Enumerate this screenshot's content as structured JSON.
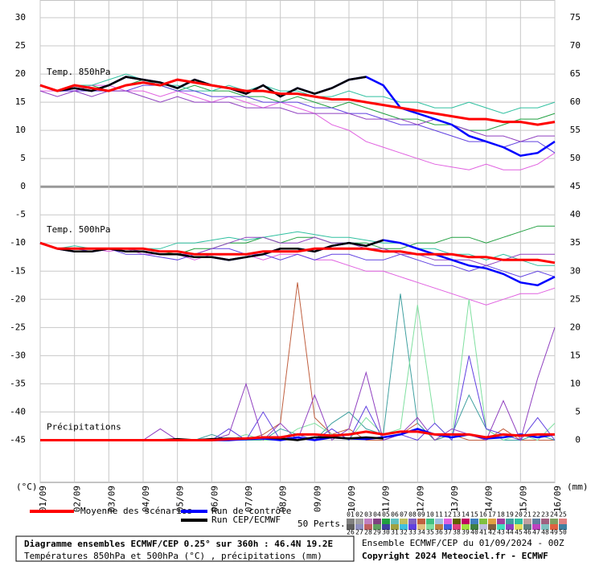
{
  "chart_data": {
    "type": "line",
    "categories": [
      "01/09",
      null,
      "02/09",
      null,
      "03/09",
      null,
      "04/09",
      null,
      "05/09",
      null,
      "06/09",
      null,
      "07/09",
      null,
      "08/09",
      null,
      "09/09",
      null,
      "10/09",
      null,
      "11/09",
      null,
      "12/09",
      null,
      "13/09",
      null,
      "14/09",
      null,
      "15/09",
      null,
      "16/09"
    ],
    "x_unit_left": "(°C)",
    "x_unit_right": "(mm)",
    "ylim": [
      -52.5,
      32
    ],
    "yticks": [
      30,
      25,
      20,
      15,
      10,
      5,
      0,
      -5,
      -10,
      -15,
      -20,
      -25,
      -30,
      -35,
      -40,
      -45
    ],
    "y2lim": [
      -7.5,
      77
    ],
    "y2ticks": [
      75,
      70,
      65,
      60,
      55,
      50,
      45,
      40,
      35,
      30,
      25,
      20,
      15,
      10,
      5,
      0
    ],
    "grid": true,
    "legend": [
      {
        "name": "Moyenne des scénarios",
        "color": "#ff0000"
      },
      {
        "name": "Run de contrôle",
        "color": "#0000ff"
      },
      {
        "name": "Run CEP/ECMWF",
        "color": "#000000"
      }
    ],
    "perturbations": {
      "label": "50 Perts.",
      "members": [
        {
          "name": "01",
          "color": "#808080"
        },
        {
          "name": "02",
          "color": "#a0a0a0"
        },
        {
          "name": "03",
          "color": "#c080c0"
        },
        {
          "name": "04",
          "color": "#804080"
        },
        {
          "name": "05",
          "color": "#20a040"
        },
        {
          "name": "06",
          "color": "#60c0c0"
        },
        {
          "name": "07",
          "color": "#c0c060"
        },
        {
          "name": "08",
          "color": "#8060c0"
        },
        {
          "name": "09",
          "color": "#c06040"
        },
        {
          "name": "10",
          "color": "#40c080"
        },
        {
          "name": "11",
          "color": "#a0c0e0"
        },
        {
          "name": "12",
          "color": "#e060e0"
        },
        {
          "name": "13",
          "color": "#606000"
        },
        {
          "name": "14",
          "color": "#c00060"
        },
        {
          "name": "15",
          "color": "#4080c0"
        },
        {
          "name": "16",
          "color": "#80c040"
        },
        {
          "name": "17",
          "color": "#e0a040"
        },
        {
          "name": "18",
          "color": "#a040a0"
        },
        {
          "name": "19",
          "color": "#40a0a0"
        },
        {
          "name": "20",
          "color": "#30c0a0"
        },
        {
          "name": "21",
          "color": "#c0a0a0"
        },
        {
          "name": "22",
          "color": "#6080a0"
        },
        {
          "name": "23",
          "color": "#a06080"
        },
        {
          "name": "24",
          "color": "#80a060"
        },
        {
          "name": "25",
          "color": "#e08080"
        },
        {
          "name": "26",
          "color": "#606060"
        },
        {
          "name": "27",
          "color": "#9090c0"
        },
        {
          "name": "28",
          "color": "#c06060"
        },
        {
          "name": "29",
          "color": "#60a060"
        },
        {
          "name": "30",
          "color": "#4040a0"
        },
        {
          "name": "31",
          "color": "#a0a040"
        },
        {
          "name": "32",
          "color": "#40c0e0"
        },
        {
          "name": "33",
          "color": "#6040e0"
        },
        {
          "name": "34",
          "color": "#e0c080"
        },
        {
          "name": "35",
          "color": "#80e0a0"
        },
        {
          "name": "36",
          "color": "#c08040"
        },
        {
          "name": "37",
          "color": "#4060e0"
        },
        {
          "name": "38",
          "color": "#e04080"
        },
        {
          "name": "39",
          "color": "#a0e040"
        },
        {
          "name": "40",
          "color": "#408040"
        },
        {
          "name": "41",
          "color": "#c0c0e0"
        },
        {
          "name": "42",
          "color": "#806040"
        },
        {
          "name": "43",
          "color": "#40e0c0"
        },
        {
          "name": "44",
          "color": "#9040c0"
        },
        {
          "name": "45",
          "color": "#e0e060"
        },
        {
          "name": "46",
          "color": "#608080"
        },
        {
          "name": "47",
          "color": "#c040c0"
        },
        {
          "name": "48",
          "color": "#80c0c0"
        },
        {
          "name": "49",
          "color": "#e06040"
        },
        {
          "name": "50",
          "color": "#4080a0"
        }
      ]
    },
    "panels": [
      {
        "label": "Temp. 850hPa",
        "axis": "y",
        "mean": [
          18,
          17,
          18,
          17.5,
          17,
          18,
          18.5,
          18,
          19,
          18.5,
          18,
          17.5,
          17,
          17,
          16.5,
          16.5,
          16,
          15.5,
          15.5,
          15,
          14.5,
          14,
          13.5,
          13,
          12.5,
          12,
          12,
          11.5,
          11.5,
          11,
          11.5
        ],
        "control": [
          18,
          17,
          17.5,
          17,
          18,
          19.5,
          19,
          18.5,
          17.5,
          19,
          18,
          17.5,
          16.5,
          18,
          16,
          17.5,
          16.5,
          17.5,
          19,
          19.5,
          18,
          14,
          13,
          12,
          11,
          9,
          8,
          7,
          5.5,
          6,
          8
        ],
        "cep": [
          18,
          17,
          17.5,
          17,
          18,
          19.5,
          19,
          18.5,
          17.5,
          19,
          18,
          17.5,
          16.5,
          18,
          16,
          17.5,
          16.5,
          17.5,
          19,
          19.5,
          null,
          null,
          null,
          null,
          null,
          null,
          null,
          null,
          null,
          null,
          null
        ],
        "members": [
          {
            "name": "05",
            "values": [
              18,
              17,
              18,
              18,
              17,
              18,
              19,
              18,
              17,
              18,
              17,
              17,
              16,
              16,
              15,
              16,
              15,
              14,
              15,
              14,
              13,
              12,
              12,
              11,
              11,
              10,
              10,
              11,
              12,
              12,
              13
            ]
          },
          {
            "name": "12",
            "values": [
              17,
              17,
              17,
              18,
              18,
              17,
              17,
              16,
              17,
              16,
              15,
              16,
              15,
              14,
              15,
              14,
              13,
              11,
              10,
              8,
              7,
              6,
              5,
              4,
              3.5,
              3,
              4,
              3,
              3,
              4,
              6
            ]
          },
          {
            "name": "20",
            "values": [
              18,
              17,
              18,
              18,
              19,
              20,
              19,
              18,
              18,
              17,
              17,
              18,
              17,
              18,
              17,
              17,
              16,
              16,
              17,
              16,
              16,
              15,
              15,
              14,
              14,
              15,
              14,
              13,
              14,
              14,
              15
            ]
          },
          {
            "name": "33",
            "values": [
              18,
              17,
              17,
              17,
              17,
              17,
              18,
              18,
              17,
              17,
              16,
              16,
              16,
              15,
              15,
              15,
              14,
              14,
              13,
              13,
              12,
              11,
              11,
              10,
              9,
              8,
              8,
              7,
              8,
              8,
              6
            ]
          },
          {
            "name": "44",
            "values": [
              17,
              16,
              17,
              16,
              17,
              17,
              16,
              15,
              16,
              15,
              15,
              15,
              14,
              14,
              14,
              13,
              13,
              13,
              13,
              12,
              12,
              12,
              11,
              12,
              11,
              10,
              9,
              9,
              8,
              9,
              9
            ]
          }
        ]
      },
      {
        "label": "Temp. 500hPa",
        "axis": "y",
        "mean": [
          -10,
          -11,
          -11,
          -11,
          -11,
          -11,
          -11,
          -11.5,
          -11.5,
          -12,
          -12,
          -12,
          -12,
          -11.5,
          -11.5,
          -11.5,
          -11,
          -11,
          -11,
          -11,
          -11.5,
          -11.5,
          -12,
          -12,
          -12,
          -12.5,
          -12.5,
          -13,
          -13,
          -13,
          -13.5
        ],
        "control": [
          -10,
          -11,
          -11.5,
          -11.5,
          -11,
          -11.5,
          -11.5,
          -12,
          -12,
          -12.5,
          -12.5,
          -13,
          -12.5,
          -12,
          -11,
          -11,
          -11.5,
          -10.5,
          -10,
          -10.5,
          -9.5,
          -10,
          -11,
          -12,
          -13,
          -14,
          -14.5,
          -15.5,
          -17,
          -17.5,
          -16
        ],
        "cep": [
          -10,
          -11,
          -11.5,
          -11.5,
          -11,
          -11.5,
          -11.5,
          -12,
          -12,
          -12.5,
          -12.5,
          -13,
          -12.5,
          -12,
          -11,
          -11,
          -11.5,
          -10.5,
          -10,
          -10.5,
          -9.5,
          null,
          null,
          null,
          null,
          null,
          null,
          null,
          null,
          null,
          null
        ],
        "members": [
          {
            "name": "05",
            "values": [
              -10,
              -11,
              -11,
              -11,
              -11,
              -11,
              -11,
              -11.5,
              -12,
              -11,
              -11,
              -10,
              -10,
              -9,
              -10,
              -9,
              -9,
              -10,
              -10,
              -10,
              -11,
              -11,
              -10,
              -10,
              -9,
              -9,
              -10,
              -9,
              -8,
              -7,
              -7
            ]
          },
          {
            "name": "12",
            "values": [
              -10,
              -11,
              -11,
              -11,
              -11.5,
              -11,
              -12,
              -12,
              -12,
              -13,
              -12,
              -12,
              -12,
              -13,
              -12,
              -12,
              -13,
              -13,
              -14,
              -15,
              -15,
              -16,
              -17,
              -18,
              -19,
              -20,
              -21,
              -20,
              -19,
              -19,
              -18
            ]
          },
          {
            "name": "20",
            "values": [
              -10,
              -11,
              -10.5,
              -11,
              -11,
              -11,
              -11,
              -11,
              -10,
              -10,
              -9.5,
              -9,
              -9.5,
              -9,
              -8.5,
              -8,
              -8.5,
              -9,
              -9,
              -9.5,
              -10,
              -10,
              -11,
              -11,
              -12,
              -12,
              -13,
              -12,
              -13,
              -14,
              -14
            ]
          },
          {
            "name": "33",
            "values": [
              -10,
              -11,
              -11,
              -11.5,
              -11,
              -12,
              -12,
              -12.5,
              -13,
              -12,
              -11,
              -11,
              -12,
              -12,
              -13,
              -12,
              -13,
              -12,
              -12,
              -13,
              -13,
              -12,
              -13,
              -14,
              -14,
              -15,
              -14,
              -15,
              -16,
              -15,
              -16
            ]
          },
          {
            "name": "44",
            "values": [
              -10,
              -11,
              -11,
              -11,
              -11,
              -11,
              -11.5,
              -12,
              -12,
              -12,
              -11,
              -10,
              -9,
              -9,
              -10,
              -10,
              -9,
              -10,
              -10,
              -11,
              -11,
              -12,
              -12,
              -13,
              -13,
              -13,
              -14,
              -13,
              -12,
              -12,
              -12
            ]
          }
        ]
      },
      {
        "label": "Précipitations",
        "axis": "y2",
        "mean": [
          0,
          0,
          0,
          0,
          0,
          0,
          0,
          0,
          0,
          0,
          0,
          0.2,
          0.3,
          0.5,
          0.5,
          1,
          1,
          0.8,
          1,
          1.5,
          1,
          1.5,
          1.5,
          1,
          1,
          1,
          0.5,
          1,
          0.8,
          1,
          1
        ],
        "control": [
          0,
          0,
          0,
          0,
          0,
          0,
          0,
          0,
          0,
          0,
          0,
          0,
          0.2,
          0.3,
          0,
          0.5,
          0,
          0.5,
          0.3,
          0.2,
          0.5,
          1,
          2,
          1,
          0.5,
          1,
          0.3,
          0.5,
          1,
          0.5,
          1
        ],
        "cep": [
          0,
          0,
          0,
          0,
          0,
          0,
          0,
          0,
          0.2,
          0,
          0.2,
          0.3,
          0.3,
          0.5,
          0.3,
          0,
          0.5,
          0.5,
          0.3,
          0.5,
          0.3,
          null,
          null,
          null,
          null,
          null,
          null,
          null,
          null,
          null,
          null
        ],
        "members": [
          {
            "name": "09",
            "values": [
              0,
              0,
              0,
              0,
              0,
              0,
              0,
              0,
              0,
              0,
              0,
              0,
              0,
              1,
              3,
              28,
              4,
              1,
              2,
              0,
              0,
              1,
              3,
              0,
              1,
              0,
              0,
              2,
              0,
              0,
              0
            ]
          },
          {
            "name": "19",
            "values": [
              0,
              0,
              0,
              0,
              0,
              0,
              0,
              0,
              0,
              0,
              1,
              0,
              0,
              0,
              2,
              1,
              0,
              3,
              5,
              2,
              1,
              26,
              3,
              0,
              1,
              8,
              2,
              0,
              0,
              1,
              0
            ]
          },
          {
            "name": "35",
            "values": [
              0,
              0,
              0,
              0,
              0,
              0,
              0,
              0,
              0,
              0,
              0,
              0,
              1,
              0,
              0,
              2,
              3,
              1,
              0,
              4,
              1,
              2,
              24,
              3,
              0,
              25,
              2,
              0,
              1,
              0,
              3
            ]
          },
          {
            "name": "33",
            "values": [
              0,
              0,
              0,
              0,
              0,
              0,
              0,
              0,
              0,
              0,
              0,
              2,
              0,
              5,
              0,
              1,
              0,
              2,
              0,
              6,
              0,
              1,
              0,
              3,
              0,
              15,
              2,
              1,
              0,
              4,
              0
            ]
          },
          {
            "name": "44",
            "values": [
              0,
              0,
              0,
              0,
              0,
              0,
              0,
              2,
              0,
              0,
              0,
              1,
              10,
              0,
              3,
              0,
              8,
              0,
              2,
              12,
              0,
              1,
              4,
              0,
              2,
              1,
              0,
              7,
              0,
              11,
              20
            ]
          }
        ]
      }
    ]
  },
  "footer": {
    "title": "Diagramme ensembles ECMWF/CEP 0.25° sur 360h : 46.4N 19.2E",
    "subtitle": "Températures 850hPa et 500hPa (°C) , précipitations (mm)",
    "run": "Ensemble ECMWF/CEP du 01/09/2024 - 00Z",
    "copyright": "Copyright 2024 Meteociel.fr - ECMWF"
  }
}
